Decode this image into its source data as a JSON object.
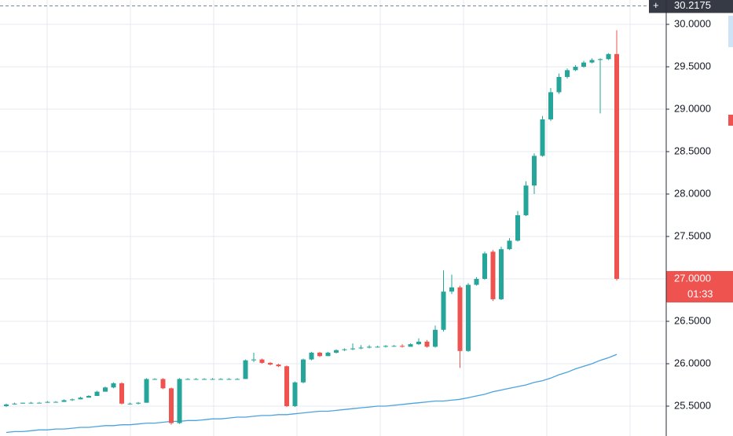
{
  "chart_data": {
    "type": "candlestick",
    "up_color": "#26a69a",
    "down_color": "#ef5350",
    "ylim": [
      25.148,
      30.287
    ],
    "yticks": [
      {
        "value": 25.5,
        "label": "25.5000"
      },
      {
        "value": 26,
        "label": "26.0000"
      },
      {
        "value": 26.5,
        "label": "26.5000"
      },
      {
        "value": 27,
        "label": "27.0000"
      },
      {
        "value": 27.5,
        "label": "27.5000"
      },
      {
        "value": 28,
        "label": "28.0000"
      },
      {
        "value": 28.5,
        "label": "28.5000"
      },
      {
        "value": 29,
        "label": "29.0000"
      },
      {
        "value": 29.5,
        "label": "29.5000"
      },
      {
        "value": 30,
        "label": "30.0000"
      }
    ],
    "grid": true,
    "crosshair_price": 30.2175,
    "last_price": {
      "value": 27,
      "label": "27.0000"
    },
    "countdown": "01:33",
    "candles": [
      [
        25.5,
        25.53,
        25.49,
        25.52
      ],
      [
        25.52,
        25.54,
        25.52,
        25.53
      ],
      [
        25.53,
        25.54,
        25.53,
        25.54
      ],
      [
        25.54,
        25.55,
        25.53,
        25.54
      ],
      [
        25.54,
        25.55,
        25.54,
        25.54
      ],
      [
        25.54,
        25.56,
        25.54,
        25.55
      ],
      [
        25.55,
        25.56,
        25.55,
        25.55
      ],
      [
        25.55,
        25.58,
        25.55,
        25.57
      ],
      [
        25.57,
        25.59,
        25.56,
        25.58
      ],
      [
        25.58,
        25.61,
        25.58,
        25.6
      ],
      [
        25.6,
        25.63,
        25.6,
        25.62
      ],
      [
        25.62,
        25.68,
        25.62,
        25.67
      ],
      [
        25.67,
        25.73,
        25.67,
        25.72
      ],
      [
        25.72,
        25.78,
        25.71,
        25.77
      ],
      [
        25.77,
        25.78,
        25.52,
        25.53
      ],
      [
        25.53,
        25.54,
        25.52,
        25.53
      ],
      [
        25.53,
        25.55,
        25.52,
        25.54
      ],
      [
        25.54,
        25.83,
        25.54,
        25.82
      ],
      [
        25.82,
        25.83,
        25.81,
        25.82
      ],
      [
        25.82,
        25.83,
        25.7,
        25.71
      ],
      [
        25.71,
        25.72,
        25.28,
        25.3
      ],
      [
        25.3,
        25.83,
        25.29,
        25.82
      ],
      [
        25.82,
        25.83,
        25.81,
        25.82
      ],
      [
        25.82,
        25.83,
        25.81,
        25.82
      ],
      [
        25.82,
        25.83,
        25.81,
        25.82
      ],
      [
        25.82,
        25.83,
        25.81,
        25.82
      ],
      [
        25.82,
        25.83,
        25.81,
        25.82
      ],
      [
        25.82,
        25.83,
        25.81,
        25.82
      ],
      [
        25.82,
        25.83,
        25.81,
        25.82
      ],
      [
        25.82,
        26.05,
        25.82,
        26.04
      ],
      [
        26.04,
        26.13,
        26.02,
        26.05
      ],
      [
        26.05,
        26.06,
        26.0,
        26.01
      ],
      [
        26.01,
        26.02,
        25.98,
        25.99
      ],
      [
        25.99,
        26.0,
        25.96,
        25.97
      ],
      [
        25.97,
        25.98,
        25.49,
        25.5
      ],
      [
        25.5,
        25.79,
        25.49,
        25.78
      ],
      [
        25.78,
        26.06,
        25.77,
        26.05
      ],
      [
        26.05,
        26.14,
        26.04,
        26.13
      ],
      [
        26.13,
        26.14,
        26.08,
        26.09
      ],
      [
        26.09,
        26.14,
        26.09,
        26.13
      ],
      [
        26.13,
        26.17,
        26.12,
        26.16
      ],
      [
        26.16,
        26.18,
        26.15,
        26.17
      ],
      [
        26.17,
        26.24,
        26.16,
        26.18
      ],
      [
        26.18,
        26.22,
        26.17,
        26.19
      ],
      [
        26.19,
        26.22,
        26.18,
        26.2
      ],
      [
        26.2,
        26.21,
        26.19,
        26.2
      ],
      [
        26.2,
        26.22,
        26.19,
        26.21
      ],
      [
        26.21,
        26.22,
        26.2,
        26.21
      ],
      [
        26.21,
        26.23,
        26.19,
        26.2
      ],
      [
        26.2,
        26.24,
        26.2,
        26.23
      ],
      [
        26.23,
        26.3,
        26.22,
        26.26
      ],
      [
        26.26,
        26.28,
        26.19,
        26.2
      ],
      [
        26.2,
        26.45,
        26.19,
        26.4
      ],
      [
        26.4,
        27.1,
        26.38,
        26.85
      ],
      [
        26.85,
        27.05,
        26.82,
        26.9
      ],
      [
        26.9,
        26.92,
        25.95,
        26.15
      ],
      [
        26.15,
        26.95,
        26.14,
        26.93
      ],
      [
        26.93,
        27.02,
        26.92,
        27.0
      ],
      [
        27.0,
        27.32,
        26.99,
        27.3
      ],
      [
        27.32,
        27.34,
        26.74,
        26.76
      ],
      [
        26.76,
        27.38,
        26.75,
        27.35
      ],
      [
        27.35,
        27.48,
        27.34,
        27.45
      ],
      [
        27.45,
        27.8,
        27.44,
        27.75
      ],
      [
        27.75,
        28.15,
        27.74,
        28.1
      ],
      [
        28.1,
        28.48,
        28.0,
        28.45
      ],
      [
        28.45,
        28.92,
        28.44,
        28.88
      ],
      [
        28.88,
        29.25,
        28.86,
        29.2
      ],
      [
        29.2,
        29.42,
        29.18,
        29.38
      ],
      [
        29.38,
        29.48,
        29.36,
        29.46
      ],
      [
        29.46,
        29.52,
        29.45,
        29.5
      ],
      [
        29.5,
        29.57,
        29.49,
        29.55
      ],
      [
        29.55,
        29.6,
        29.54,
        29.58
      ],
      [
        29.58,
        29.6,
        28.95,
        29.59
      ],
      [
        29.59,
        29.66,
        29.58,
        29.65
      ],
      [
        29.65,
        29.93,
        26.98,
        27.0
      ]
    ],
    "series": [
      {
        "color": "#4aa3df",
        "values": [
          25.19,
          25.2,
          25.2,
          25.21,
          25.22,
          25.22,
          25.23,
          25.23,
          25.24,
          25.25,
          25.25,
          25.26,
          25.27,
          25.27,
          25.28,
          25.28,
          25.29,
          25.3,
          25.3,
          25.31,
          25.32,
          25.32,
          25.33,
          25.33,
          25.34,
          25.35,
          25.35,
          25.36,
          25.37,
          25.37,
          25.38,
          25.39,
          25.39,
          25.4,
          25.4,
          25.41,
          25.42,
          25.43,
          25.44,
          25.44,
          25.45,
          25.46,
          25.47,
          25.48,
          25.49,
          25.5,
          25.5,
          25.51,
          25.52,
          25.53,
          25.54,
          25.55,
          25.56,
          25.56,
          25.57,
          25.58,
          25.6,
          25.62,
          25.64,
          25.67,
          25.69,
          25.71,
          25.73,
          25.75,
          25.78,
          25.8,
          25.83,
          25.87,
          25.9,
          25.94,
          25.97,
          26.0,
          26.04,
          26.07,
          26.11
        ]
      }
    ]
  }
}
